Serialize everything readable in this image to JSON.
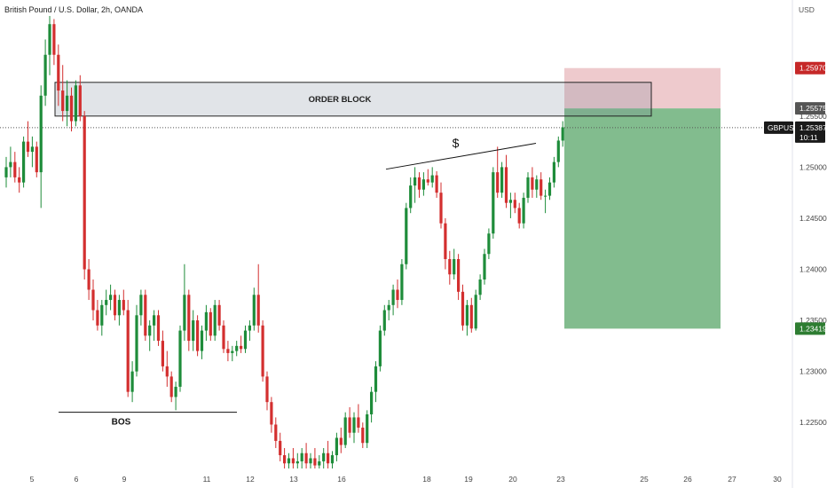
{
  "header": {
    "title": "British Pound / U.S. Dollar, 2h, OANDA"
  },
  "axis": {
    "currency": "USD"
  },
  "ticker": {
    "symbol": "GBPUSD",
    "countdown": "10:11"
  },
  "colors": {
    "up": "#1e8c3a",
    "down": "#d32f2f",
    "stop": "#c62828",
    "target": "#2e7d32",
    "price_label": "#1a1a1a",
    "stop_zone": "rgba(200,80,90,0.30)",
    "target_zone": "rgba(40,140,60,0.58)",
    "block_fill": "rgba(120,130,150,0.22)"
  },
  "price_labels": {
    "stop": "1.25970",
    "entry": "1.25575",
    "current": "1.25387",
    "target": "1.23419"
  },
  "chart_data": {
    "type": "candlestick",
    "symbol": "GBPUSD",
    "interval": "2h",
    "ylim": [
      1.2205,
      1.2648
    ],
    "y_ticks": [
      "1.25500",
      "1.25000",
      "1.24500",
      "1.24000",
      "1.23500",
      "1.23000",
      "1.22500"
    ],
    "x_ticks": [
      "5",
      "6",
      "9",
      "11",
      "12",
      "13",
      "16",
      "18",
      "19",
      "20",
      "23",
      "25",
      "26",
      "27",
      "30"
    ],
    "annotations": {
      "order_block": {
        "label": "ORDER BLOCK",
        "x_start_day": "5",
        "x_end_day": "25",
        "top": 1.2583,
        "bottom": 1.255
      },
      "bos": {
        "label": "BOS",
        "level": 1.226,
        "x_start_day": "5",
        "x_end_day": "12"
      },
      "liquidity": {
        "label": "$",
        "from_price": 1.2498,
        "to_price": 1.2532
      },
      "position": {
        "type": "short",
        "entry": 1.25575,
        "stop": 1.2597,
        "target": 1.23419,
        "x_start_day": "23",
        "x_end_day": "27"
      },
      "last_price": 1.25387
    },
    "candles": [
      [
        1.249,
        1.251,
        1.248,
        1.25
      ],
      [
        1.25,
        1.252,
        1.249,
        1.2505
      ],
      [
        1.2505,
        1.2515,
        1.2485,
        1.249
      ],
      [
        1.249,
        1.25,
        1.2475,
        1.2485
      ],
      [
        1.2485,
        1.253,
        1.248,
        1.2525
      ],
      [
        1.2525,
        1.2545,
        1.251,
        1.2515
      ],
      [
        1.2515,
        1.253,
        1.25,
        1.252
      ],
      [
        1.252,
        1.2525,
        1.249,
        1.2495
      ],
      [
        1.2495,
        1.258,
        1.246,
        1.257
      ],
      [
        1.257,
        1.2625,
        1.256,
        1.261
      ],
      [
        1.261,
        1.2648,
        1.259,
        1.264
      ],
      [
        1.264,
        1.2645,
        1.26,
        1.261
      ],
      [
        1.261,
        1.262,
        1.256,
        1.2575
      ],
      [
        1.2575,
        1.26,
        1.2545,
        1.2555
      ],
      [
        1.2555,
        1.2585,
        1.254,
        1.257
      ],
      [
        1.257,
        1.2578,
        1.2535,
        1.2545
      ],
      [
        1.2545,
        1.2585,
        1.254,
        1.258
      ],
      [
        1.258,
        1.259,
        1.2545,
        1.255
      ],
      [
        1.255,
        1.2555,
        1.239,
        1.24
      ],
      [
        1.24,
        1.241,
        1.237,
        1.238
      ],
      [
        1.238,
        1.239,
        1.235,
        1.236
      ],
      [
        1.236,
        1.237,
        1.234,
        1.2345
      ],
      [
        1.2345,
        1.237,
        1.2335,
        1.2365
      ],
      [
        1.2365,
        1.238,
        1.2355,
        1.237
      ],
      [
        1.237,
        1.2385,
        1.236,
        1.2375
      ],
      [
        1.2375,
        1.238,
        1.235,
        1.2355
      ],
      [
        1.2355,
        1.2375,
        1.2345,
        1.237
      ],
      [
        1.237,
        1.238,
        1.2355,
        1.236
      ],
      [
        1.236,
        1.237,
        1.2275,
        1.228
      ],
      [
        1.228,
        1.231,
        1.227,
        1.23
      ],
      [
        1.23,
        1.2365,
        1.2295,
        1.2355
      ],
      [
        1.2355,
        1.238,
        1.2345,
        1.2375
      ],
      [
        1.2375,
        1.238,
        1.233,
        1.2335
      ],
      [
        1.2335,
        1.235,
        1.232,
        1.2345
      ],
      [
        1.2345,
        1.236,
        1.233,
        1.2355
      ],
      [
        1.2355,
        1.236,
        1.2325,
        1.233
      ],
      [
        1.233,
        1.234,
        1.23,
        1.2305
      ],
      [
        1.2305,
        1.232,
        1.2285,
        1.2295
      ],
      [
        1.2295,
        1.23,
        1.227,
        1.2275
      ],
      [
        1.2275,
        1.229,
        1.2262,
        1.2285
      ],
      [
        1.2285,
        1.2345,
        1.228,
        1.234
      ],
      [
        1.234,
        1.2405,
        1.233,
        1.2375
      ],
      [
        1.2375,
        1.238,
        1.232,
        1.233
      ],
      [
        1.233,
        1.236,
        1.232,
        1.235
      ],
      [
        1.235,
        1.2355,
        1.2315,
        1.232
      ],
      [
        1.232,
        1.2345,
        1.2312,
        1.234
      ],
      [
        1.234,
        1.2365,
        1.233,
        1.2358
      ],
      [
        1.2358,
        1.2362,
        1.233,
        1.2335
      ],
      [
        1.2335,
        1.237,
        1.233,
        1.2365
      ],
      [
        1.2365,
        1.237,
        1.234,
        1.2345
      ],
      [
        1.2345,
        1.235,
        1.2318,
        1.2322
      ],
      [
        1.2322,
        1.233,
        1.231,
        1.2318
      ],
      [
        1.2318,
        1.2325,
        1.231,
        1.232
      ],
      [
        1.232,
        1.233,
        1.2315,
        1.2325
      ],
      [
        1.2325,
        1.2335,
        1.2318,
        1.2322
      ],
      [
        1.2322,
        1.2345,
        1.2318,
        1.234
      ],
      [
        1.234,
        1.235,
        1.233,
        1.2345
      ],
      [
        1.2345,
        1.2382,
        1.234,
        1.2375
      ],
      [
        1.2375,
        1.2405,
        1.2338,
        1.2345
      ],
      [
        1.2345,
        1.235,
        1.229,
        1.2295
      ],
      [
        1.2295,
        1.23,
        1.2262,
        1.227
      ],
      [
        1.227,
        1.2275,
        1.224,
        1.2248
      ],
      [
        1.2248,
        1.2255,
        1.2225,
        1.2232
      ],
      [
        1.2232,
        1.224,
        1.2212,
        1.2218
      ],
      [
        1.2218,
        1.2225,
        1.2205,
        1.221
      ],
      [
        1.221,
        1.222,
        1.2205,
        1.2215
      ],
      [
        1.2215,
        1.2225,
        1.2205,
        1.221
      ],
      [
        1.221,
        1.222,
        1.2205,
        1.2212
      ],
      [
        1.2212,
        1.2225,
        1.2205,
        1.222
      ],
      [
        1.222,
        1.223,
        1.2205,
        1.221
      ],
      [
        1.221,
        1.222,
        1.2205,
        1.2215
      ],
      [
        1.2215,
        1.2225,
        1.2205,
        1.2208
      ],
      [
        1.2208,
        1.2218,
        1.2205,
        1.2212
      ],
      [
        1.2212,
        1.2225,
        1.2205,
        1.222
      ],
      [
        1.222,
        1.2232,
        1.2205,
        1.221
      ],
      [
        1.221,
        1.2222,
        1.2205,
        1.2218
      ],
      [
        1.2218,
        1.224,
        1.2212,
        1.2235
      ],
      [
        1.2235,
        1.2245,
        1.222,
        1.2228
      ],
      [
        1.2228,
        1.226,
        1.2225,
        1.2255
      ],
      [
        1.2255,
        1.2265,
        1.2235,
        1.224
      ],
      [
        1.224,
        1.226,
        1.223,
        1.2255
      ],
      [
        1.2255,
        1.2268,
        1.224,
        1.2245
      ],
      [
        1.2245,
        1.225,
        1.2225,
        1.223
      ],
      [
        1.223,
        1.2262,
        1.2225,
        1.2258
      ],
      [
        1.2258,
        1.2285,
        1.225,
        1.228
      ],
      [
        1.228,
        1.231,
        1.227,
        1.2305
      ],
      [
        1.2305,
        1.2345,
        1.23,
        1.234
      ],
      [
        1.234,
        1.2365,
        1.2335,
        1.236
      ],
      [
        1.236,
        1.237,
        1.235,
        1.2365
      ],
      [
        1.2365,
        1.2385,
        1.2355,
        1.238
      ],
      [
        1.238,
        1.239,
        1.2362,
        1.237
      ],
      [
        1.237,
        1.241,
        1.2365,
        1.2405
      ],
      [
        1.2405,
        1.2465,
        1.24,
        1.246
      ],
      [
        1.246,
        1.249,
        1.2455,
        1.2482
      ],
      [
        1.2482,
        1.25,
        1.2465,
        1.249
      ],
      [
        1.249,
        1.2495,
        1.247,
        1.2478
      ],
      [
        1.2478,
        1.2495,
        1.2472,
        1.2488
      ],
      [
        1.2488,
        1.2498,
        1.2482,
        1.2485
      ],
      [
        1.2485,
        1.25,
        1.248,
        1.2492
      ],
      [
        1.2492,
        1.2496,
        1.247,
        1.2475
      ],
      [
        1.2475,
        1.2485,
        1.244,
        1.2445
      ],
      [
        1.2445,
        1.245,
        1.24,
        1.241
      ],
      [
        1.241,
        1.2418,
        1.2385,
        1.2395
      ],
      [
        1.2395,
        1.242,
        1.239,
        1.241
      ],
      [
        1.241,
        1.2415,
        1.237,
        1.2378
      ],
      [
        1.2378,
        1.2385,
        1.234,
        1.2345
      ],
      [
        1.2345,
        1.237,
        1.2335,
        1.2365
      ],
      [
        1.2365,
        1.2372,
        1.2338,
        1.2342
      ],
      [
        1.2342,
        1.238,
        1.234,
        1.2375
      ],
      [
        1.2375,
        1.2395,
        1.237,
        1.239
      ],
      [
        1.239,
        1.242,
        1.2385,
        1.2415
      ],
      [
        1.2415,
        1.244,
        1.241,
        1.2435
      ],
      [
        1.2435,
        1.25,
        1.243,
        1.2495
      ],
      [
        1.2495,
        1.252,
        1.247,
        1.2475
      ],
      [
        1.2475,
        1.2505,
        1.247,
        1.25
      ],
      [
        1.25,
        1.2512,
        1.246,
        1.2465
      ],
      [
        1.2465,
        1.2475,
        1.245,
        1.2468
      ],
      [
        1.2468,
        1.2475,
        1.2455,
        1.246
      ],
      [
        1.246,
        1.2465,
        1.244,
        1.2445
      ],
      [
        1.2445,
        1.2475,
        1.244,
        1.247
      ],
      [
        1.247,
        1.2495,
        1.2465,
        1.249
      ],
      [
        1.249,
        1.25,
        1.247,
        1.2478
      ],
      [
        1.2478,
        1.2492,
        1.247,
        1.2488
      ],
      [
        1.2488,
        1.2495,
        1.2468,
        1.2472
      ],
      [
        1.2472,
        1.2478,
        1.2455,
        1.2472
      ],
      [
        1.2472,
        1.249,
        1.2468,
        1.2485
      ],
      [
        1.2485,
        1.251,
        1.248,
        1.2505
      ],
      [
        1.2505,
        1.253,
        1.25,
        1.2526
      ],
      [
        1.2526,
        1.2545,
        1.252,
        1.2539
      ]
    ]
  }
}
